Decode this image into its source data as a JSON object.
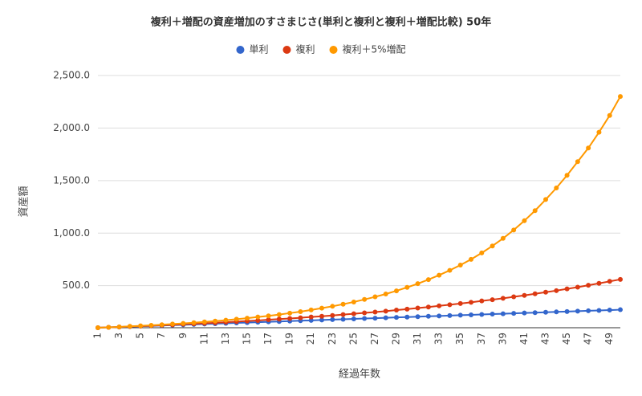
{
  "chart_data": {
    "type": "line",
    "title": "複利＋増配の資産増加のすさまじさ(単利と複利と複利＋増配比較) 50年",
    "x_label": "経過年数",
    "y_label": "資産額",
    "x": [
      1,
      2,
      3,
      4,
      5,
      6,
      7,
      8,
      9,
      10,
      11,
      12,
      13,
      14,
      15,
      16,
      17,
      18,
      19,
      20,
      21,
      22,
      23,
      24,
      25,
      26,
      27,
      28,
      29,
      30,
      31,
      32,
      33,
      34,
      35,
      36,
      37,
      38,
      39,
      40,
      41,
      42,
      43,
      44,
      45,
      46,
      47,
      48,
      49,
      50
    ],
    "xlim": [
      1,
      50
    ],
    "xticks": [
      1,
      3,
      5,
      7,
      9,
      11,
      13,
      15,
      17,
      19,
      21,
      23,
      25,
      27,
      29,
      31,
      33,
      35,
      37,
      39,
      41,
      43,
      45,
      47,
      49
    ],
    "ylim": [
      100,
      2500
    ],
    "yticks": [
      {
        "value": 500,
        "label": "500.0"
      },
      {
        "value": 1000,
        "label": "1,000.0"
      },
      {
        "value": 1500,
        "label": "1,500.0"
      },
      {
        "value": 2000,
        "label": "2,000.0"
      },
      {
        "value": 2500,
        "label": "2,500.0"
      }
    ],
    "grid": true,
    "legend": "top",
    "series": [
      {
        "name": "単利",
        "color": "#3366cc",
        "values": [
          100,
          103.5,
          107,
          110.5,
          114,
          117.5,
          121,
          124.5,
          128,
          131.5,
          135,
          138.5,
          142,
          145.5,
          149,
          152.5,
          156,
          159.5,
          163,
          166.5,
          170,
          173.5,
          177,
          180.5,
          184,
          187.5,
          191,
          194.5,
          198,
          201.5,
          205,
          208.5,
          212,
          215.5,
          219,
          222.5,
          226,
          229.5,
          233,
          236.5,
          240,
          243.5,
          247,
          250.5,
          254,
          257.5,
          261,
          264.5,
          268,
          271.5
        ]
      },
      {
        "name": "複利",
        "color": "#dc3912",
        "values": [
          100,
          104,
          107,
          111,
          115,
          119,
          124,
          128,
          133,
          137,
          142,
          147,
          153,
          158,
          164,
          169,
          176,
          182,
          188,
          195,
          202,
          209,
          217,
          225,
          233,
          241,
          249,
          258,
          268,
          277,
          287,
          297,
          308,
          319,
          330,
          342,
          355,
          367,
          380,
          394,
          408,
          423,
          438,
          453,
          470,
          486,
          504,
          522,
          541,
          560
        ]
      },
      {
        "name": "複利＋5%増配",
        "color": "#ff9900",
        "values": [
          100,
          104,
          108,
          113,
          118,
          123,
          129,
          135,
          141,
          148,
          155,
          163,
          172,
          181,
          191,
          202,
          213,
          225,
          239,
          253,
          269,
          286,
          304,
          324,
          345,
          369,
          394,
          421,
          451,
          484,
          519,
          558,
          600,
          646,
          696,
          751,
          812,
          878,
          950,
          1030,
          1118,
          1214,
          1320,
          1430,
          1550,
          1680,
          1810,
          1960,
          2120,
          2300
        ]
      }
    ]
  }
}
